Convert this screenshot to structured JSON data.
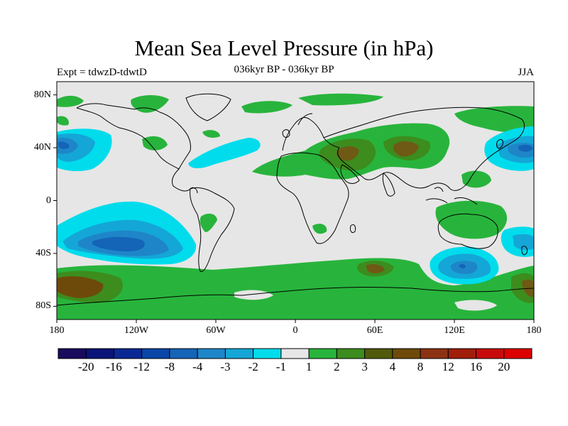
{
  "title": "Mean Sea Level Pressure (in hPa)",
  "subtitle_left": "Expt = tdwzD-tdwtD",
  "subtitle_center": "036kyr BP - 036kyr BP",
  "subtitle_right": "JJA",
  "lat_labels": [
    "80N",
    "40N",
    "0",
    "40S",
    "80S"
  ],
  "lat_values": [
    80,
    40,
    0,
    -40,
    -80
  ],
  "lon_labels": [
    "180",
    "120W",
    "60W",
    "0",
    "60E",
    "120E",
    "180"
  ],
  "lon_values": [
    -180,
    -120,
    -60,
    0,
    60,
    120,
    180
  ],
  "lat_range": [
    -90,
    90
  ],
  "lon_range": [
    -180,
    180
  ],
  "colorbar": {
    "colors": [
      "#1a0a5e",
      "#0a1478",
      "#0a2894",
      "#0a46a8",
      "#1464b8",
      "#1e86c8",
      "#14a6d6",
      "#00dcec",
      "#e6e6e6",
      "#28b43c",
      "#3c8c1e",
      "#505a0a",
      "#6e4a0a",
      "#8c3214",
      "#a01e0a",
      "#c80a0a",
      "#dc0000"
    ],
    "labels": [
      "-20",
      "-16",
      "-12",
      "-8",
      "-4",
      "-3",
      "-2",
      "-1",
      "1",
      "2",
      "3",
      "4",
      "8",
      "12",
      "16",
      "20"
    ]
  },
  "colors": {
    "background_neutral": "#e6e6e6",
    "pos_1_2": "#28b43c",
    "pos_2_3": "#3c8c1e",
    "pos_3_4": "#6e5a14",
    "pos_4_8": "#7a4a14",
    "neg_1_2": "#00dcec",
    "neg_2_3": "#14a6d6",
    "neg_3_4": "#1e86c8",
    "neg_4_8": "#1464b8",
    "coastline": "#000000"
  },
  "contour_regions": [
    {
      "name": "north-pacific-low",
      "level": -4,
      "lon": -172,
      "lat": 42
    },
    {
      "name": "south-pacific-low",
      "level": -4,
      "lon": -135,
      "lat": -32
    },
    {
      "name": "australia-south-low",
      "level": -4,
      "lon": 122,
      "lat": -46
    },
    {
      "name": "tasman-low",
      "level": -3,
      "lon": 175,
      "lat": -30
    },
    {
      "name": "asia-high",
      "level": 3,
      "lon": 80,
      "lat": 38
    },
    {
      "name": "arabia-high",
      "level": 3,
      "lon": 45,
      "lat": 35
    },
    {
      "name": "southern-ocean-high-pacific",
      "level": 4,
      "lon": -165,
      "lat": -65
    },
    {
      "name": "southern-ocean-high-indian",
      "level": 3,
      "lon": 55,
      "lat": -50
    }
  ]
}
